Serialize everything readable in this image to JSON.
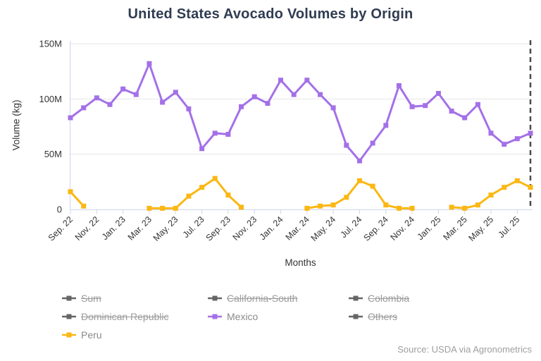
{
  "header": {
    "title": "United States Avocado Volumes by Origin"
  },
  "chart_data": {
    "type": "line",
    "title": "United States Avocado Volumes by Origin",
    "xlabel": "Months",
    "ylabel": "Volume (kg)",
    "ylim": [
      0,
      150
    ],
    "yticks": [
      {
        "value": 0,
        "label": "0"
      },
      {
        "value": 50,
        "label": "50M"
      },
      {
        "value": 100,
        "label": "100M"
      },
      {
        "value": 150,
        "label": "150M"
      }
    ],
    "x_tick_interval": 2,
    "grid": true,
    "legend_position": "bottom-left",
    "unit": "M kg",
    "categories": [
      "Sep. 22",
      "Oct. 22",
      "Nov. 22",
      "Dec. 22",
      "Jan. 23",
      "Feb. 23",
      "Mar. 23",
      "Apr. 23",
      "May. 23",
      "Jun. 23",
      "Jul. 23",
      "Aug. 23",
      "Sep. 23",
      "Oct. 23",
      "Nov. 23",
      "Dec. 23",
      "Jan. 24",
      "Feb. 24",
      "Mar. 24",
      "Apr. 24",
      "May. 24",
      "Jun. 24",
      "Jul. 24",
      "Aug. 24",
      "Sep. 24",
      "Oct. 24",
      "Nov. 24",
      "Dec. 24",
      "Jan. 25",
      "Feb. 25",
      "Mar. 25",
      "Apr. 25",
      "May. 25",
      "Jun. 25",
      "Jul. 25",
      "Aug. 25"
    ],
    "series": [
      {
        "name": "Mexico",
        "color": "#a470e8",
        "values": [
          83,
          92,
          101,
          95,
          109,
          104,
          132,
          97,
          106,
          91,
          55,
          69,
          68,
          93,
          102,
          96,
          117,
          104,
          117,
          104,
          92,
          58,
          44,
          60,
          76,
          112,
          93,
          94,
          105,
          89,
          83,
          95,
          69,
          59,
          64,
          69
        ]
      },
      {
        "name": "Peru",
        "color": "#fbb713",
        "values": [
          16,
          3,
          null,
          null,
          null,
          null,
          1,
          1,
          1,
          12,
          20,
          28,
          13,
          2,
          null,
          null,
          null,
          null,
          1,
          3,
          4,
          11,
          26,
          21,
          4,
          1,
          1,
          null,
          null,
          2,
          1,
          4,
          13,
          20,
          26,
          20
        ]
      }
    ],
    "plot_line": {
      "at_category_index": 35,
      "style": "dashed",
      "color": "#4a4a4a"
    }
  },
  "legend": {
    "disabled_color": "#666666",
    "items": [
      {
        "label": "Sum",
        "active": false
      },
      {
        "label": "California-South",
        "active": false
      },
      {
        "label": "Colombia",
        "active": false
      },
      {
        "label": "Dominican Republic",
        "active": false
      },
      {
        "label": "Mexico",
        "active": true
      },
      {
        "label": "Others",
        "active": false
      },
      {
        "label": "Peru",
        "active": true
      }
    ]
  },
  "credits": {
    "text": "Source: USDA via Agronometrics"
  }
}
